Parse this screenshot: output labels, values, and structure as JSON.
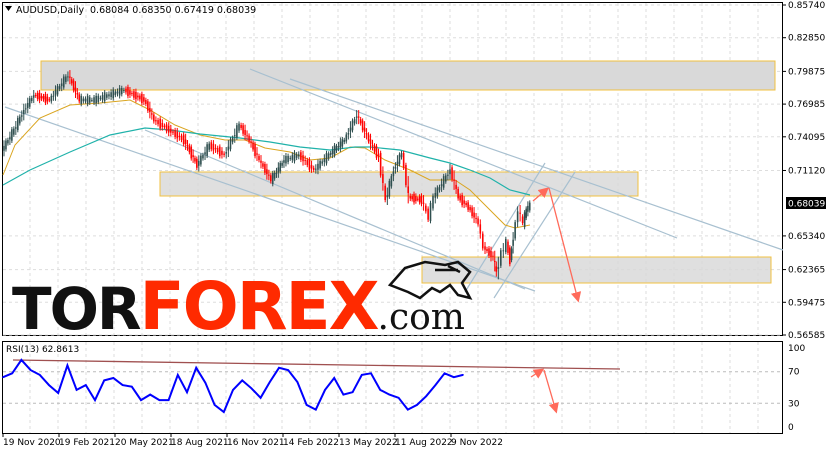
{
  "header": {
    "symbol": "AUDUSD,Daily",
    "ohlc": "0.68084 0.68350 0.67419 0.68039",
    "menu_icon": "triangle-down-icon"
  },
  "logo": {
    "tor": "TOR",
    "forex": "FOREX",
    "com": ".com",
    "icon": "bull-icon"
  },
  "colors": {
    "bull_candle": "#2f4f4f",
    "bear_candle": "#ff0000",
    "ma_fast": "#daa520",
    "ma_slow": "#20b2aa",
    "rsi": "#0000ff",
    "zone_border": "#f0c040",
    "forecast_arrow": "#ff6a5a",
    "trendline": "#a8c0d0"
  },
  "chart_data": [
    {
      "type": "line",
      "title": "AUDUSD,Daily",
      "ylim": [
        0.56585,
        0.8574
      ],
      "y_ticks": [
        "0.85740",
        "0.82850",
        "0.79875",
        "0.76985",
        "0.74095",
        "0.71120",
        "0.68039",
        "0.65340",
        "0.62365",
        "0.59475",
        "0.56585"
      ],
      "current_price": "0.68039",
      "x_ticks": [
        "19 Nov 2020",
        "19 Feb 2021",
        "20 May 2021",
        "18 Aug 2021",
        "16 Nov 2021",
        "14 Feb 2022",
        "13 May 2022",
        "11 Aug 2022",
        "9 Nov 2022"
      ],
      "grid": true,
      "series": [
        {
          "x": [
            "2020-11-19",
            "2020-12-08",
            "2020-12-24",
            "2021-01-09",
            "2021-02-03",
            "2021-03-05",
            "2021-03-23",
            "2021-04-16",
            "2021-05-10",
            "2021-06-03",
            "2021-07-05",
            "2021-07-21",
            "2021-08-14",
            "2021-09-07",
            "2021-09-28",
            "2021-10-18",
            "2021-11-11",
            "2021-12-05",
            "2021-12-21",
            "2022-01-06",
            "2022-01-25",
            "2022-02-15",
            "2022-03-11",
            "2022-04-04",
            "2022-04-28",
            "2022-05-23",
            "2022-06-12",
            "2022-07-01",
            "2022-07-17",
            "2022-07-28",
            "2022-08-10",
            "2022-08-23",
            "2022-09-03",
            "2022-09-24",
            "2022-10-05",
            "2022-10-13",
            "2022-11-09",
            "2022-11-22",
            "2022-12-08",
            "2022-12-24",
            "2023-01-01",
            "2023-01-17",
            "2023-01-22",
            "2023-01-30",
            "2023-02-07",
            "2023-02-13",
            "2023-02-18",
            "2023-02-26",
            "2023-03-06",
            "2023-03-11",
            "2023-03-17"
          ],
          "y": [
            0.7293,
            0.747,
            0.7646,
            0.7779,
            0.7735,
            0.7955,
            0.7735,
            0.7735,
            0.7779,
            0.7823,
            0.7735,
            0.7558,
            0.747,
            0.7381,
            0.716,
            0.7337,
            0.7249,
            0.7514,
            0.7381,
            0.7204,
            0.7028,
            0.7204,
            0.7249,
            0.7116,
            0.7249,
            0.7381,
            0.7602,
            0.7381,
            0.7231,
            0.6851,
            0.7116,
            0.7266,
            0.6877,
            0.6851,
            0.6701,
            0.6877,
            0.7116,
            0.6877,
            0.6789,
            0.6648,
            0.6436,
            0.6347,
            0.6206,
            0.6383,
            0.6471,
            0.6321,
            0.6524,
            0.6763,
            0.6648,
            0.6763,
            0.6804
          ]
        }
      ]
    },
    {
      "type": "line",
      "title": "RSI(13) 62.8613",
      "ylim": [
        0,
        100
      ],
      "y_ticks": [
        "100",
        "70",
        "30",
        "0"
      ],
      "levels": [
        70,
        30
      ],
      "series": [
        {
          "values": [
            63,
            68,
            85,
            72,
            66,
            53,
            43,
            78,
            47,
            53,
            34,
            59,
            62,
            53,
            51,
            34,
            41,
            34,
            34,
            66,
            44,
            75,
            56,
            28,
            19,
            47,
            59,
            49,
            37,
            57,
            75,
            72,
            57,
            28,
            22,
            47,
            62,
            41,
            44,
            66,
            68,
            47,
            41,
            37,
            22,
            28,
            39,
            53,
            68,
            63,
            66
          ]
        }
      ]
    }
  ]
}
